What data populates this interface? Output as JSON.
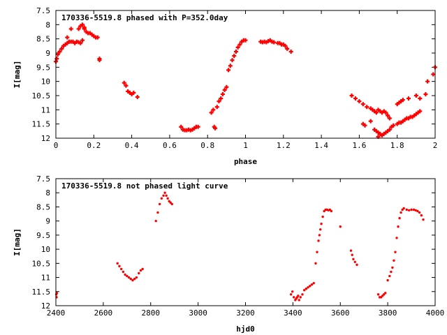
{
  "colors": {
    "marker": "#ff0000",
    "axis": "#000000",
    "background": "#ffffff"
  },
  "chart_data": [
    {
      "type": "scatter",
      "title": "170336-5519.8 phased with P=352.0day",
      "xlabel": "phase",
      "ylabel": "I[mag]",
      "xlim": [
        0,
        2
      ],
      "ylim": [
        12,
        7.5
      ],
      "y_inverted": true,
      "xticks": [
        0,
        0.2,
        0.4,
        0.6,
        0.8,
        1,
        1.2,
        1.4,
        1.6,
        1.8,
        2
      ],
      "xtick_labels": [
        "0",
        "0.2",
        "0.4",
        "0.6",
        "0.8",
        "1",
        "1.2",
        "1.4",
        "1.6",
        "1.8",
        "2"
      ],
      "yticks": [
        7.5,
        8,
        8.5,
        9,
        9.5,
        10,
        10.5,
        11,
        11.5,
        12
      ],
      "ytick_labels": [
        "7.5",
        "8",
        "8.5",
        "9",
        "9.5",
        "10",
        "10.5",
        "11",
        "11.5",
        "12"
      ],
      "grid": false,
      "marker": "plus",
      "series": [
        {
          "x": [
            0.0,
            0.005,
            0.01,
            0.02,
            0.03,
            0.04,
            0.05,
            0.06,
            0.07,
            0.08,
            0.09,
            0.1,
            0.11,
            0.12,
            0.13,
            0.14,
            0.15,
            0.16,
            0.17,
            0.18,
            0.19,
            0.2,
            0.21,
            0.22,
            0.23,
            0.12,
            0.13,
            0.14,
            0.15,
            0.08,
            0.06,
            0.23,
            0.36,
            0.37,
            0.38,
            0.39,
            0.4,
            0.41,
            0.43,
            0.66,
            0.67,
            0.68,
            0.69,
            0.7,
            0.71,
            0.72,
            0.73,
            0.74,
            0.75,
            0.82,
            0.83,
            0.835,
            0.84,
            0.85,
            0.86,
            0.87,
            0.88,
            0.89,
            0.9,
            0.91,
            0.92,
            0.93,
            0.94,
            0.95,
            0.96,
            0.97,
            0.98,
            0.99,
            1.0,
            1.08,
            1.09,
            1.1,
            1.11,
            1.12,
            1.13,
            1.14,
            1.15,
            1.17,
            1.18,
            1.19,
            1.2,
            1.21,
            1.22,
            1.24,
            1.56,
            1.58,
            1.6,
            1.62,
            1.64,
            1.66,
            1.67,
            1.68,
            1.69,
            1.7,
            1.71,
            1.72,
            1.73,
            1.74,
            1.75,
            1.76,
            1.62,
            1.63,
            1.66,
            1.68,
            1.69,
            1.7,
            1.71,
            1.72,
            1.73,
            1.74,
            1.75,
            1.7,
            1.72,
            1.76,
            1.77,
            1.78,
            1.8,
            1.81,
            1.82,
            1.83,
            1.84,
            1.85,
            1.86,
            1.87,
            1.88,
            1.89,
            1.9,
            1.91,
            1.92,
            1.8,
            1.81,
            1.82,
            1.83,
            1.86,
            1.9,
            1.92,
            1.95,
            1.96,
            1.99,
            2.0
          ],
          "y": [
            9.3,
            9.2,
            9.05,
            8.95,
            8.85,
            8.75,
            8.7,
            8.65,
            8.6,
            8.6,
            8.6,
            8.65,
            8.6,
            8.62,
            8.65,
            8.55,
            8.1,
            8.25,
            8.3,
            8.3,
            8.35,
            8.4,
            8.45,
            8.45,
            9.25,
            8.15,
            8.05,
            8.0,
            8.15,
            8.15,
            8.45,
            9.2,
            10.05,
            10.15,
            10.35,
            10.4,
            10.45,
            10.4,
            10.55,
            11.6,
            11.7,
            11.72,
            11.72,
            11.7,
            11.72,
            11.7,
            11.65,
            11.6,
            11.6,
            11.1,
            11.0,
            11.6,
            11.65,
            10.9,
            10.7,
            10.6,
            10.45,
            10.3,
            10.2,
            9.6,
            9.45,
            9.25,
            9.1,
            8.95,
            8.8,
            8.7,
            8.6,
            8.55,
            8.55,
            8.6,
            8.62,
            8.6,
            8.62,
            8.58,
            8.55,
            8.6,
            8.62,
            8.65,
            8.65,
            8.7,
            8.7,
            8.75,
            8.85,
            8.95,
            10.5,
            10.6,
            10.7,
            10.8,
            10.9,
            10.95,
            11.0,
            11.05,
            11.1,
            11.0,
            11.05,
            11.1,
            11.05,
            11.1,
            11.2,
            11.3,
            11.5,
            11.55,
            11.4,
            11.7,
            11.75,
            11.8,
            11.85,
            11.9,
            11.85,
            11.8,
            11.75,
            11.95,
            11.9,
            11.7,
            11.6,
            11.55,
            11.5,
            11.45,
            11.45,
            11.4,
            11.35,
            11.3,
            11.3,
            11.25,
            11.25,
            11.2,
            11.15,
            11.1,
            11.05,
            10.8,
            10.75,
            10.7,
            10.65,
            10.6,
            10.5,
            10.6,
            10.45,
            10.0,
            9.75,
            9.5
          ]
        }
      ]
    },
    {
      "type": "scatter",
      "title": "170336-5519.8 not phased light curve",
      "xlabel": "hjd0",
      "ylabel": "I[mag]",
      "xlim": [
        2400,
        4000
      ],
      "ylim": [
        12,
        7.5
      ],
      "y_inverted": true,
      "xticks": [
        2400,
        2600,
        2800,
        3000,
        3200,
        3400,
        3600,
        3800,
        4000
      ],
      "xtick_labels": [
        "2400",
        "2600",
        "2800",
        "3000",
        "3200",
        "3400",
        "3600",
        "3800",
        "4000"
      ],
      "yticks": [
        7.5,
        8,
        8.5,
        9,
        9.5,
        10,
        10.5,
        11,
        11.5,
        12
      ],
      "ytick_labels": [
        "7.5",
        "8",
        "8.5",
        "9",
        "9.5",
        "10",
        "10.5",
        "11",
        "11.5",
        "12"
      ],
      "grid": false,
      "marker": "dot",
      "series": [
        {
          "x": [
            2402,
            2403,
            2404,
            2660,
            2668,
            2676,
            2684,
            2692,
            2700,
            2708,
            2716,
            2724,
            2732,
            2740,
            2750,
            2758,
            2766,
            2822,
            2830,
            2838,
            2846,
            2854,
            2860,
            2866,
            2872,
            2878,
            2884,
            2890,
            3392,
            3398,
            3404,
            3410,
            3414,
            3418,
            3422,
            3426,
            3432,
            3440,
            3448,
            3456,
            3464,
            3472,
            3480,
            3488,
            3496,
            3502,
            3508,
            3512,
            3516,
            3520,
            3526,
            3532,
            3538,
            3544,
            3550,
            3556,
            3562,
            3600,
            3645,
            3650,
            3655,
            3662,
            3670,
            3760,
            3766,
            3772,
            3778,
            3784,
            3790,
            3800,
            3808,
            3814,
            3820,
            3826,
            3832,
            3838,
            3844,
            3850,
            3856,
            3862,
            3868,
            3880,
            3890,
            3900,
            3910,
            3918,
            3926,
            3934,
            3942,
            3950
          ],
          "y": [
            11.6,
            11.7,
            11.55,
            10.5,
            10.6,
            10.7,
            10.8,
            10.9,
            10.95,
            11.0,
            11.05,
            11.1,
            11.05,
            11.0,
            10.85,
            10.75,
            10.7,
            9.0,
            8.7,
            8.4,
            8.2,
            8.1,
            8.0,
            8.1,
            8.2,
            8.3,
            8.35,
            8.4,
            11.6,
            11.5,
            11.7,
            11.8,
            11.75,
            11.7,
            11.65,
            11.8,
            11.7,
            11.6,
            11.45,
            11.4,
            11.35,
            11.3,
            11.25,
            11.2,
            10.5,
            10.1,
            9.7,
            9.5,
            9.3,
            9.1,
            8.85,
            8.65,
            8.6,
            8.6,
            8.62,
            8.6,
            8.65,
            9.2,
            10.05,
            10.2,
            10.35,
            10.45,
            10.55,
            11.6,
            11.7,
            11.7,
            11.65,
            11.6,
            11.55,
            11.1,
            10.95,
            10.8,
            10.65,
            10.4,
            10.1,
            9.6,
            9.2,
            8.9,
            8.7,
            8.6,
            8.55,
            8.6,
            8.62,
            8.6,
            8.6,
            8.62,
            8.65,
            8.7,
            8.8,
            8.95
          ]
        }
      ]
    }
  ]
}
